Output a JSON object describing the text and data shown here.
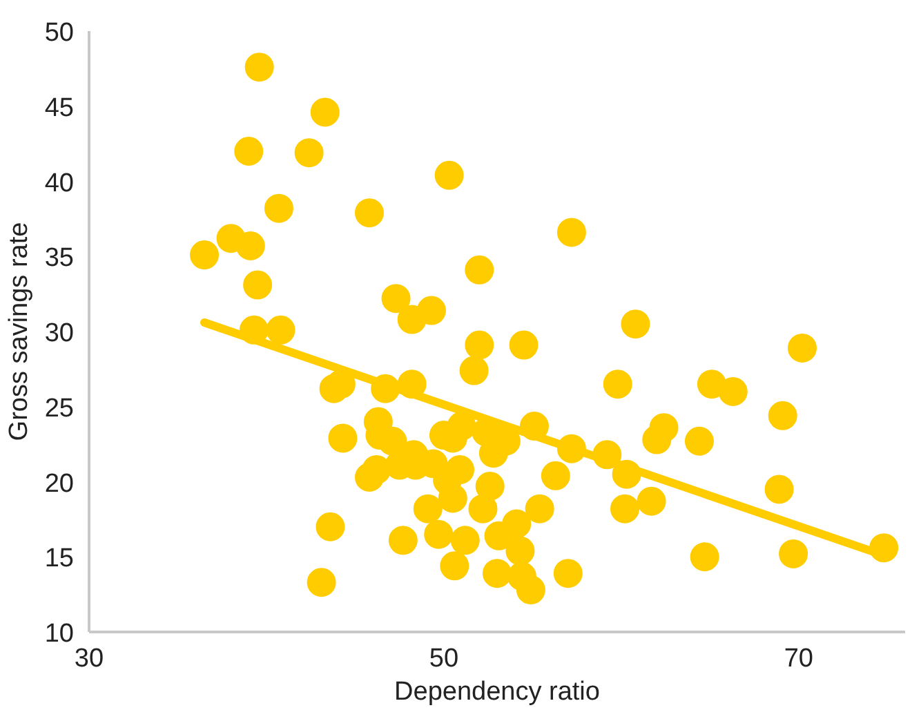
{
  "chart_data": {
    "type": "scatter",
    "xlabel": "Dependency ratio",
    "ylabel": "Gross savings rate",
    "xlim": [
      30,
      76
    ],
    "xticks": [
      30,
      50,
      70
    ],
    "ylim": [
      10,
      50
    ],
    "yticks": [
      10,
      15,
      20,
      25,
      30,
      35,
      40,
      45,
      50
    ],
    "grid": false,
    "marker": "circle",
    "series": [
      {
        "color": "#ffcc00",
        "x": [
          36.5,
          38.0,
          39.1,
          39.0,
          39.6,
          39.5,
          39.3,
          40.8,
          40.7,
          42.4,
          43.3,
          43.1,
          43.6,
          43.8,
          44.2,
          44.3,
          45.8,
          45.8,
          46.2,
          46.3,
          46.4,
          46.7,
          47.1,
          47.3,
          47.5,
          47.7,
          48.2,
          48.2,
          48.3,
          48.4,
          49.1,
          49.3,
          49.4,
          49.7,
          50.0,
          50.2,
          50.3,
          50.5,
          50.6,
          50.5,
          50.9,
          51.0,
          51.2,
          51.7,
          52.0,
          52.0,
          52.2,
          52.4,
          52.6,
          52.8,
          53.1,
          53.0,
          53.5,
          54.1,
          54.3,
          54.4,
          54.5,
          54.9,
          55.1,
          55.4,
          56.3,
          57.0,
          57.2,
          57.2,
          59.2,
          59.8,
          60.2,
          60.3,
          60.8,
          61.7,
          62.0,
          62.4,
          64.4,
          64.7,
          65.1,
          66.3,
          68.9,
          69.1,
          69.7,
          70.2,
          74.8
        ],
        "values": [
          35.1,
          36.2,
          35.7,
          42.0,
          47.6,
          33.1,
          30.1,
          30.1,
          38.2,
          41.9,
          44.6,
          13.3,
          17.0,
          26.2,
          26.5,
          22.9,
          37.9,
          20.3,
          20.8,
          24.0,
          23.1,
          26.2,
          22.7,
          32.2,
          21.1,
          16.1,
          30.8,
          26.5,
          21.8,
          21.1,
          18.2,
          31.4,
          21.2,
          16.5,
          23.1,
          20.1,
          40.4,
          18.9,
          14.4,
          22.9,
          20.8,
          23.7,
          16.1,
          27.4,
          34.1,
          29.1,
          18.2,
          23.3,
          19.7,
          21.9,
          16.4,
          13.9,
          22.7,
          17.2,
          15.4,
          13.7,
          29.1,
          12.8,
          23.7,
          18.2,
          20.4,
          13.9,
          36.6,
          22.2,
          21.8,
          26.5,
          18.2,
          20.5,
          30.5,
          18.7,
          22.8,
          23.6,
          22.7,
          15.0,
          26.5,
          26.0,
          19.5,
          24.4,
          15.2,
          28.9,
          15.6
        ]
      },
      {
        "type": "line",
        "color": "#ffcc00",
        "x": [
          36.5,
          74.8
        ],
        "values": [
          30.6,
          15.1
        ],
        "marker": "none"
      }
    ]
  }
}
